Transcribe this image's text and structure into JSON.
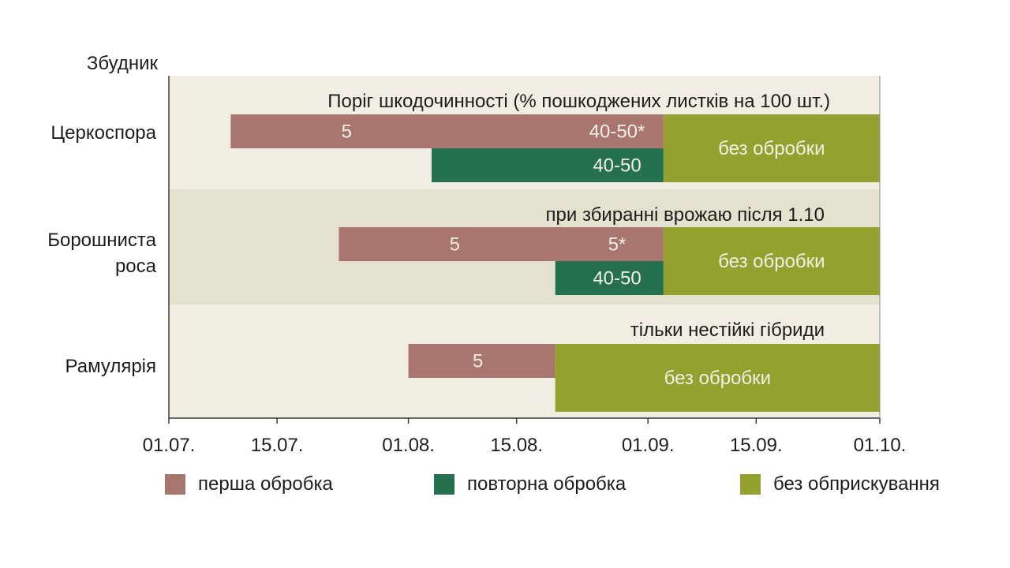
{
  "chart_data": {
    "type": "bar",
    "y_axis_title": "Збудник",
    "x_axis": {
      "ticks": [
        "01.07.",
        "15.07.",
        "01.08.",
        "15.08.",
        "01.09.",
        "15.09.",
        "01.10."
      ],
      "tick_days": [
        0,
        14,
        31,
        45,
        62,
        76,
        92
      ],
      "range": [
        "01.07.",
        "01.10."
      ]
    },
    "categories": [
      {
        "label": "Церкоспора",
        "header": "Поріг шкодочинності (% пошкоджених листків на 100 шт.)",
        "bars": [
          {
            "series": "first",
            "start": "09.07.",
            "end": "03.09.",
            "labels": [
              {
                "text": "5",
                "at": "24.07."
              },
              {
                "text": "40-50*",
                "at": "28.08."
              }
            ]
          },
          {
            "series": "repeat",
            "start": "04.08.",
            "end": "03.09.",
            "labels": [
              {
                "text": "40-50",
                "at": "28.08."
              }
            ]
          },
          {
            "series": "none",
            "start": "03.09.",
            "end": "01.10.",
            "labels": [
              {
                "text": "без обробки",
                "at": "17.09."
              }
            ]
          }
        ]
      },
      {
        "label": "Борошниста роса",
        "header": "при збиранні врожаю після 1.10",
        "bars": [
          {
            "series": "first",
            "start": "23.07.",
            "end": "03.09.",
            "labels": [
              {
                "text": "5",
                "at": "07.08."
              },
              {
                "text": "5*",
                "at": "28.08."
              }
            ]
          },
          {
            "series": "repeat",
            "start": "20.08.",
            "end": "03.09.",
            "labels": [
              {
                "text": "40-50",
                "at": "28.08."
              }
            ]
          },
          {
            "series": "none",
            "start": "03.09.",
            "end": "01.10.",
            "labels": [
              {
                "text": "без обробки",
                "at": "17.09."
              }
            ]
          }
        ]
      },
      {
        "label": "Рамулярія",
        "header": "тільки нестійкі гібриди",
        "bars": [
          {
            "series": "first",
            "start": "01.08.",
            "end": "20.08.",
            "labels": [
              {
                "text": "5",
                "at": "10.08."
              }
            ]
          },
          {
            "series": "none",
            "start": "20.08.",
            "end": "01.10.",
            "labels": [
              {
                "text": "без обробки",
                "at": "10.09."
              }
            ]
          }
        ]
      }
    ],
    "series": [
      {
        "key": "first",
        "name": "перша обробка",
        "color": "#a9756f"
      },
      {
        "key": "repeat",
        "name": "повторна обробка",
        "color": "#24704f"
      },
      {
        "key": "none",
        "name": "без обприскування",
        "color": "#95a12f"
      }
    ],
    "colors": {
      "band_light": "#f1ede3",
      "band_dark": "#e5e1cf",
      "bar_text": "#f2eee6",
      "axis": "#3a3a3a"
    }
  }
}
